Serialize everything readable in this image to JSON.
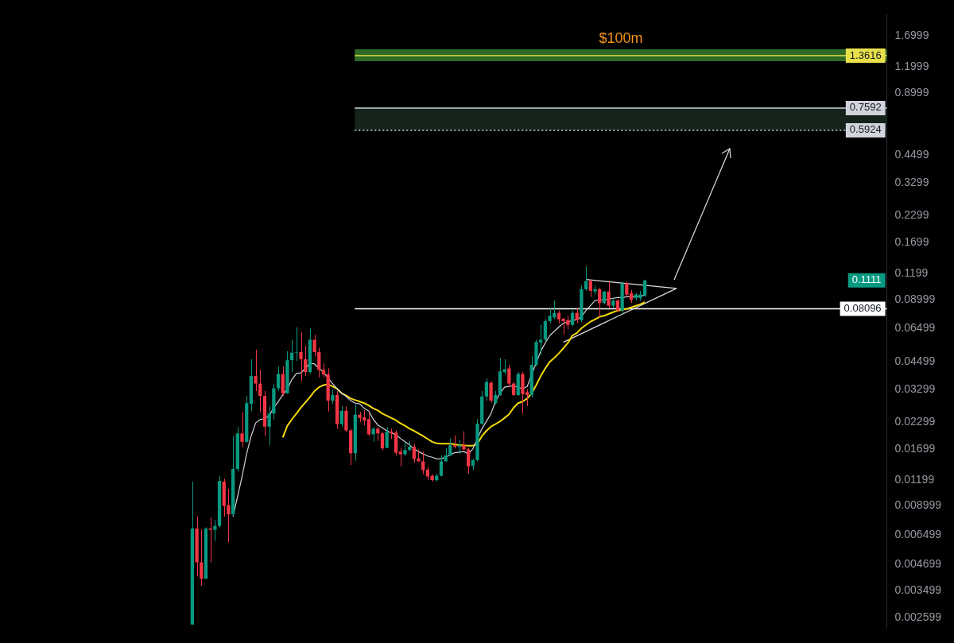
{
  "chart_data": {
    "type": "candlestick",
    "log": true,
    "grid": false,
    "legend": false,
    "tick_labels": "y",
    "colors": [
      null,
      null,
      null,
      null,
      null,
      null,
      null,
      null,
      null,
      null,
      null,
      null,
      null,
      null,
      null,
      null,
      null,
      null,
      null,
      null,
      null,
      null,
      null,
      null,
      null,
      null,
      null,
      null,
      null,
      null,
      null,
      null,
      null,
      null,
      null,
      null,
      null,
      null,
      null,
      null,
      null,
      null,
      "#089981",
      "#f23645",
      "#f23645",
      "#089981",
      "#f23645",
      "#089981",
      "#089981",
      "#f23645",
      "#f23645",
      "#089981",
      "#089981",
      "#f23645",
      "#089981",
      "#089981",
      "#f23645",
      "#f23645",
      "#f23645",
      "#089981",
      "#089981",
      "#089981",
      "#f23645",
      "#089981",
      "#089981",
      "#089981",
      "#f23645",
      "#f23645",
      "#089981",
      "#f23645",
      "#f23645",
      "#f23645",
      "#f23645",
      "#089981",
      "#f23645",
      "#089981",
      "#f23645",
      "#f23645",
      "#089981",
      "#f23645",
      "#f23645",
      "#f23645",
      "#089981",
      "#f23645",
      "#f23645",
      "#089981",
      "#f23645",
      "#f23645",
      "#f23645",
      "#089981",
      "#089981",
      "#f23645",
      "#f23645",
      "#f23645",
      "#f23645",
      "#f23645",
      "#089981",
      "#089981",
      "#089981",
      "#089981",
      "#f23645",
      "#089981",
      "#f23645",
      "#f23645",
      "#089981",
      "#089981",
      "#089981",
      "#089981",
      "#f23645",
      "#089981",
      "#089981",
      "#089981",
      "#f23645",
      "#f23645",
      "#089981",
      "#f23645",
      "#f23645",
      "#089981",
      "#089981",
      "#089981",
      "#089981",
      "#089981",
      "#089981",
      "#f23645",
      "#f23645",
      "#f23645",
      "#089981",
      "#f23645",
      "#089981",
      "#089981",
      "#f23645",
      "#089981",
      "#f23645",
      "#089981",
      "#f23645",
      "#089981",
      "#f23645",
      "#089981",
      "#f23645",
      "#f23645",
      "#089981",
      "#089981",
      "#089981",
      null,
      null,
      null,
      null,
      null,
      null,
      null,
      null,
      null,
      null,
      null,
      null,
      null,
      null,
      null,
      null,
      null,
      null,
      null,
      null,
      null,
      null,
      null,
      null,
      null,
      null,
      null,
      null,
      null,
      null,
      null,
      null,
      null,
      null,
      null,
      null,
      null,
      null,
      null,
      null,
      null,
      null,
      null,
      null,
      null,
      null,
      null,
      null,
      null,
      null,
      null,
      null,
      null
    ],
    "ylim": [
      0.0023,
      2.15
    ],
    "yticks": [
      0.002599,
      0.003499,
      0.004699,
      0.006499,
      0.008999,
      0.01199,
      0.01699,
      0.02299,
      0.03299,
      0.04499,
      0.06499,
      0.08999,
      0.1199,
      0.1699,
      0.2299,
      0.3299,
      0.4499,
      0.8999,
      1.1999,
      1.6999
    ],
    "categories": [
      null,
      null,
      null,
      null,
      null,
      null,
      null,
      null,
      null,
      null,
      null,
      null,
      null,
      null,
      null,
      null,
      null,
      null,
      null,
      null,
      null,
      null,
      null,
      null,
      null,
      null,
      null,
      null,
      null,
      null,
      null,
      null,
      null,
      null,
      null,
      null,
      null,
      null,
      null,
      null,
      null,
      null,
      null,
      null,
      null,
      null,
      null,
      null,
      null,
      null,
      null,
      null,
      null,
      null,
      null,
      null,
      null,
      null,
      null,
      null,
      null,
      null,
      null,
      null,
      null,
      null,
      null,
      null,
      null,
      null,
      null,
      null,
      null,
      null,
      null,
      null,
      null,
      null,
      null,
      null,
      null,
      null,
      null,
      null,
      null,
      null,
      null,
      null,
      null,
      null,
      null,
      null,
      null,
      null,
      null,
      null,
      null,
      null,
      null,
      null,
      null,
      null,
      null,
      null,
      null,
      null,
      null,
      null,
      null,
      null,
      null,
      null,
      null,
      null,
      null,
      null,
      null,
      null,
      null,
      null,
      null,
      null,
      null,
      null,
      null,
      null,
      null,
      null,
      null,
      null,
      null,
      null,
      null,
      null,
      null,
      null,
      null,
      null,
      null,
      null,
      null,
      null,
      null,
      null,
      null,
      null,
      null,
      null,
      null,
      null,
      null,
      null,
      null,
      null,
      null,
      null,
      null,
      null,
      null,
      null,
      null,
      null,
      null,
      null,
      null,
      null,
      null,
      null,
      null,
      null,
      null,
      null,
      null,
      null,
      null,
      null,
      null,
      null,
      null,
      null,
      null,
      null,
      null,
      null,
      null,
      null,
      null,
      null,
      null,
      null,
      null,
      null,
      null,
      null,
      null,
      null
    ],
    "ohlc": [
      null,
      null,
      null,
      null,
      null,
      null,
      null,
      null,
      null,
      null,
      null,
      null,
      null,
      null,
      null,
      null,
      null,
      null,
      null,
      null,
      null,
      null,
      null,
      null,
      null,
      null,
      null,
      null,
      null,
      null,
      null,
      null,
      null,
      null,
      null,
      null,
      null,
      null,
      null,
      null,
      null,
      null,
      [
        0.0024,
        0.0118,
        0.0024,
        0.007
      ],
      [
        0.007,
        0.008,
        0.0041,
        0.0048
      ],
      [
        0.0048,
        0.0069,
        0.0037,
        0.004
      ],
      [
        0.004,
        0.0071,
        0.004,
        0.007
      ],
      [
        0.007,
        0.0079,
        0.0048,
        0.0069
      ],
      [
        0.0069,
        0.0077,
        0.0061,
        0.0072
      ],
      [
        0.0072,
        0.0126,
        0.0071,
        0.0119
      ],
      [
        0.0118,
        0.0122,
        0.008,
        0.009
      ],
      [
        0.0091,
        0.0109,
        0.006,
        0.0082
      ],
      [
        0.0082,
        0.0196,
        0.0081,
        0.0136
      ],
      [
        0.0136,
        0.0218,
        0.0132,
        0.0202
      ],
      [
        0.0202,
        0.0257,
        0.0173,
        0.0184
      ],
      [
        0.0184,
        0.0307,
        0.0182,
        0.0283
      ],
      [
        0.0281,
        0.0462,
        0.026,
        0.0383
      ],
      [
        0.0383,
        0.0514,
        0.0324,
        0.0352
      ],
      [
        0.0352,
        0.041,
        0.0256,
        0.0307
      ],
      [
        0.0307,
        0.0324,
        0.0196,
        0.0218
      ],
      [
        0.0218,
        0.0274,
        0.0177,
        0.0252
      ],
      [
        0.0252,
        0.0352,
        0.0236,
        0.0334
      ],
      [
        0.0334,
        0.0426,
        0.0324,
        0.0392
      ],
      [
        0.0392,
        0.0426,
        0.0307,
        0.0316
      ],
      [
        0.0316,
        0.0505,
        0.0314,
        0.0457
      ],
      [
        0.0457,
        0.0574,
        0.04,
        0.0497
      ],
      [
        0.0497,
        0.066,
        0.0453,
        0.05
      ],
      [
        0.05,
        0.0624,
        0.0362,
        0.0462
      ],
      [
        0.0462,
        0.0536,
        0.0383,
        0.04
      ],
      [
        0.04,
        0.065,
        0.0394,
        0.0574
      ],
      [
        0.0574,
        0.0606,
        0.0476,
        0.05
      ],
      [
        0.05,
        0.0526,
        0.0377,
        0.041
      ],
      [
        0.041,
        0.0441,
        0.0377,
        0.039
      ],
      [
        0.039,
        0.0417,
        0.0258,
        0.0291
      ],
      [
        0.0291,
        0.033,
        0.0281,
        0.031
      ],
      [
        0.031,
        0.0324,
        0.0213,
        0.0224
      ],
      [
        0.0224,
        0.0274,
        0.0218,
        0.026
      ],
      [
        0.026,
        0.0274,
        0.0205,
        0.0209
      ],
      [
        0.0209,
        0.0213,
        0.0142,
        0.0162
      ],
      [
        0.0162,
        0.0279,
        0.0149,
        0.0249
      ],
      [
        0.0249,
        0.0257,
        0.0229,
        0.024
      ],
      [
        0.0242,
        0.0262,
        0.0221,
        0.0233
      ],
      [
        0.0237,
        0.0256,
        0.0196,
        0.02
      ],
      [
        0.02,
        0.0217,
        0.0184,
        0.0213
      ],
      [
        0.0213,
        0.0217,
        0.0186,
        0.0202
      ],
      [
        0.0202,
        0.0205,
        0.0168,
        0.0171
      ],
      [
        0.0172,
        0.0217,
        0.0171,
        0.0206
      ],
      [
        0.0206,
        0.0213,
        0.019,
        0.0202
      ],
      [
        0.0204,
        0.0209,
        0.0158,
        0.0163
      ],
      [
        0.0165,
        0.0172,
        0.014,
        0.016
      ],
      [
        0.016,
        0.0184,
        0.0158,
        0.0168
      ],
      [
        0.0168,
        0.0186,
        0.0165,
        0.0174
      ],
      [
        0.0174,
        0.018,
        0.0146,
        0.0152
      ],
      [
        0.0153,
        0.0169,
        0.0147,
        0.0148
      ],
      [
        0.0148,
        0.0165,
        0.0128,
        0.0134
      ],
      [
        0.0135,
        0.0139,
        0.012,
        0.0125
      ],
      [
        0.0126,
        0.0128,
        0.0118,
        0.012
      ],
      [
        0.012,
        0.0129,
        0.0118,
        0.0126
      ],
      [
        0.0126,
        0.0158,
        0.0125,
        0.0148
      ],
      [
        0.0148,
        0.0171,
        0.0147,
        0.0158
      ],
      [
        0.0158,
        0.0191,
        0.0157,
        0.0177
      ],
      [
        0.0177,
        0.0198,
        0.0171,
        0.0174
      ],
      [
        0.0174,
        0.0187,
        0.0161,
        0.0177
      ],
      [
        0.0177,
        0.0207,
        0.0168,
        0.0169
      ],
      [
        0.0169,
        0.0172,
        0.0129,
        0.014
      ],
      [
        0.0141,
        0.0152,
        0.0134,
        0.015
      ],
      [
        0.015,
        0.0237,
        0.0148,
        0.0225
      ],
      [
        0.0225,
        0.0324,
        0.0221,
        0.0305
      ],
      [
        0.0305,
        0.0373,
        0.0291,
        0.0358
      ],
      [
        0.0355,
        0.0362,
        0.0285,
        0.0291
      ],
      [
        0.0283,
        0.0324,
        0.028,
        0.031
      ],
      [
        0.031,
        0.0468,
        0.0307,
        0.0403
      ],
      [
        0.04,
        0.0462,
        0.039,
        0.0413
      ],
      [
        0.0417,
        0.0433,
        0.0338,
        0.0352
      ],
      [
        0.0352,
        0.0358,
        0.0307,
        0.031
      ],
      [
        0.031,
        0.04,
        0.0307,
        0.0392
      ],
      [
        0.0392,
        0.04,
        0.0252,
        0.0313
      ],
      [
        0.032,
        0.033,
        0.0274,
        0.031
      ],
      [
        0.031,
        0.048,
        0.0302,
        0.0434
      ],
      [
        0.0434,
        0.0574,
        0.0426,
        0.056
      ],
      [
        0.0556,
        0.068,
        0.0485,
        0.0574
      ],
      [
        0.0574,
        0.072,
        0.056,
        0.0706
      ],
      [
        0.0706,
        0.0816,
        0.069,
        0.075
      ],
      [
        0.0736,
        0.0888,
        0.072,
        0.0774
      ],
      [
        0.0774,
        0.0796,
        0.069,
        0.072
      ],
      [
        0.0726,
        0.073,
        0.0608,
        0.0706
      ],
      [
        0.0713,
        0.075,
        0.0645,
        0.0677
      ],
      [
        0.0677,
        0.0796,
        0.067,
        0.0774
      ],
      [
        0.0774,
        0.0816,
        0.069,
        0.0713
      ],
      [
        0.0713,
        0.105,
        0.07,
        0.1008
      ],
      [
        0.1008,
        0.13,
        0.099,
        0.1104
      ],
      [
        0.1104,
        0.1123,
        0.0926,
        0.099
      ],
      [
        0.0982,
        0.105,
        0.095,
        0.1008
      ],
      [
        0.1008,
        0.1025,
        0.0736,
        0.0866
      ],
      [
        0.0866,
        0.099,
        0.0852,
        0.0982
      ],
      [
        0.0982,
        0.1096,
        0.0816,
        0.0838
      ],
      [
        0.0838,
        0.0903,
        0.0816,
        0.0888
      ],
      [
        0.0888,
        0.0903,
        0.0782,
        0.0796
      ],
      [
        0.0796,
        0.1096,
        0.0766,
        0.1076
      ],
      [
        0.1076,
        0.1096,
        0.0926,
        0.095
      ],
      [
        0.0966,
        0.1,
        0.0866,
        0.0896
      ],
      [
        0.0912,
        0.0966,
        0.0888,
        0.095
      ],
      [
        0.0912,
        0.099,
        0.0888,
        0.095
      ],
      [
        0.094,
        0.1123,
        0.0926,
        0.1111
      ],
      null,
      null,
      null,
      null,
      null,
      null,
      null,
      null,
      null,
      null,
      null,
      null,
      null,
      null,
      null,
      null,
      null,
      null,
      null,
      null,
      null,
      null,
      null,
      null,
      null,
      null,
      null,
      null,
      null,
      null,
      null,
      null,
      null,
      null,
      null,
      null,
      null,
      null,
      null,
      null,
      null,
      null,
      null,
      null,
      null,
      null,
      null,
      null,
      null,
      null,
      null,
      null,
      null
    ],
    "series": [
      {
        "type": "line",
        "color": "#d1d4dc",
        "values": [
          null,
          null,
          null,
          null,
          null,
          null,
          null,
          null,
          null,
          null,
          null,
          null,
          null,
          null,
          null,
          null,
          null,
          null,
          null,
          null,
          null,
          null,
          null,
          null,
          null,
          null,
          null,
          null,
          null,
          null,
          null,
          null,
          null,
          null,
          null,
          null,
          null,
          null,
          null,
          null,
          null,
          null,
          null,
          null,
          null,
          null,
          null,
          null,
          null,
          null,
          null,
          0.008,
          0.01,
          0.0125,
          0.0161,
          0.0196,
          0.0227,
          0.0236,
          0.0238,
          0.0246,
          0.0269,
          0.0288,
          0.0311,
          0.0332,
          0.0368,
          0.0394,
          0.0397,
          0.0417,
          0.0442,
          0.0438,
          0.0417,
          0.04,
          0.0374,
          0.0352,
          0.0332,
          0.0316,
          0.0305,
          0.0291,
          0.0283,
          0.0281,
          0.0267,
          0.0259,
          0.0236,
          0.0222,
          0.0215,
          0.0208,
          0.0203,
          0.0199,
          0.0191,
          0.0184,
          0.0178,
          0.017,
          0.0165,
          0.0161,
          0.0157,
          0.0155,
          0.0152,
          0.0152,
          0.0155,
          0.0159,
          0.0163,
          0.0164,
          0.0165,
          0.0161,
          0.017,
          null,
          0.0213,
          0.0231,
          0.0252,
          0.0288,
          0.0316,
          0.0338,
          0.0341,
          0.0344,
          0.0338,
          0.0332,
          0.0341,
          null,
          null,
          0.0505,
          0.0554,
          0.0601,
          0.0631,
          0.0661,
          0.069,
          0.0702,
          0.0708,
          0.072,
          0.0741,
          0.0796,
          0.084,
          0.0888,
          0.0895,
          0.0895,
          0.0903,
          0.0911,
          0.0919,
          0.0919,
          0.0927,
          0.0927,
          0.0927,
          0.0935,
          0.0943,
          null,
          null,
          null,
          null,
          null,
          null,
          null,
          null,
          null,
          null,
          null,
          null,
          null,
          null,
          null,
          null,
          null,
          null,
          null,
          null,
          null,
          null,
          null,
          null,
          null,
          null,
          null,
          null,
          null,
          null,
          null,
          null,
          null,
          null,
          null,
          null,
          null,
          null,
          null,
          null,
          null,
          null,
          null,
          null,
          null,
          null,
          null,
          null,
          null,
          null,
          null,
          null,
          null
        ]
      },
      {
        "type": "line",
        "color": "#f5d90a",
        "values": [
          null,
          null,
          null,
          null,
          null,
          null,
          null,
          null,
          null,
          null,
          null,
          null,
          null,
          null,
          null,
          null,
          null,
          null,
          null,
          null,
          null,
          null,
          null,
          null,
          null,
          null,
          null,
          null,
          null,
          null,
          null,
          null,
          null,
          null,
          null,
          null,
          null,
          null,
          null,
          null,
          null,
          null,
          null,
          null,
          null,
          null,
          null,
          null,
          null,
          null,
          null,
          null,
          null,
          null,
          null,
          null,
          null,
          null,
          null,
          null,
          null,
          null,
          0.0193,
          0.022,
          0.0236,
          0.0252,
          0.0269,
          0.0286,
          0.0303,
          0.0324,
          0.0338,
          0.0346,
          0.0349,
          0.0341,
          0.0332,
          0.0316,
          0.0308,
          0.0298,
          0.0293,
          0.0288,
          0.0283,
          0.0276,
          0.0267,
          0.0261,
          0.0252,
          0.0246,
          0.024,
          0.0234,
          0.0226,
          0.022,
          0.0213,
          0.0208,
          0.0202,
          0.0196,
          0.019,
          0.0184,
          0.0181,
          0.018,
          0.018,
          0.018,
          0.0179,
          0.0177,
          0.0177,
          0.0176,
          0.0176,
          0.018,
          0.0196,
          0.0208,
          0.0218,
          0.0224,
          0.0231,
          0.024,
          0.025,
          0.0269,
          0.0283,
          0.0288,
          0.0298,
          0.0316,
          0.0346,
          0.0383,
          0.0417,
          0.0449,
          0.0469,
          0.0493,
          0.0522,
          0.0554,
          0.0601,
          0.0619,
          0.0652,
          0.0677,
          0.0702,
          0.072,
          0.0741,
          0.075,
          0.0765,
          0.078,
          0.0795,
          0.0802,
          0.0809,
          0.0823,
          0.0838,
          0.0852,
          0.0873,
          null,
          null,
          null,
          null,
          null,
          null,
          null,
          null,
          null,
          null,
          null,
          null,
          null,
          null,
          null,
          null,
          null,
          null,
          null,
          null,
          null,
          null,
          null,
          null,
          null,
          null,
          null,
          null,
          null,
          null,
          null,
          null,
          null,
          null,
          null,
          null,
          null,
          null,
          null,
          null,
          null,
          null,
          null,
          null,
          null,
          null,
          null,
          null,
          null,
          null,
          null,
          null,
          null
        ]
      },
      {
        "type": "line",
        "color": "#e0e0e0",
        "values": [
          null,
          null,
          null,
          null,
          null,
          null,
          null,
          null,
          null,
          null,
          null,
          null,
          null,
          null,
          null,
          null,
          null,
          null,
          null,
          null,
          null,
          null,
          null,
          null,
          null,
          null,
          null,
          null,
          null,
          null,
          null,
          null,
          null,
          null,
          null,
          null,
          null,
          null,
          null,
          null,
          null,
          null,
          null,
          null,
          null,
          null,
          null,
          null,
          null,
          null,
          null,
          null,
          null,
          null,
          null,
          null,
          null,
          null,
          null,
          null,
          null,
          null,
          null,
          null,
          null,
          null,
          null,
          null,
          null,
          null,
          null,
          null,
          null,
          null,
          null,
          null,
          null,
          null,
          null,
          null,
          null,
          null,
          null,
          null,
          null,
          null,
          null,
          null,
          null,
          null,
          null,
          null,
          null,
          null,
          null,
          null,
          null,
          null,
          null,
          null,
          null,
          null,
          null,
          null,
          null,
          null,
          null,
          null,
          null,
          null,
          null,
          null,
          null,
          null,
          null,
          null,
          null,
          null,
          null,
          null,
          null,
          null,
          null,
          null,
          null,
          null,
          null,
          null,
          null,
          0.1123,
          null,
          null,
          null,
          null,
          null,
          null,
          null,
          null,
          null,
          null,
          null,
          null,
          null,
          null,
          null,
          null,
          null,
          null,
          null,
          0.1017,
          null,
          null,
          null,
          null,
          null,
          null,
          null,
          null,
          null,
          null,
          null,
          null,
          null,
          null,
          null,
          null,
          null,
          null,
          null,
          null,
          null,
          null,
          null,
          null,
          null,
          null,
          null,
          null,
          null,
          null,
          null,
          null,
          null,
          null,
          null,
          null,
          null,
          null,
          null,
          null,
          null,
          null,
          null,
          null,
          null,
          null
        ]
      },
      {
        "type": "line",
        "color": "#e0e0e0",
        "values": [
          null,
          null,
          null,
          null,
          null,
          null,
          null,
          null,
          null,
          null,
          null,
          null,
          null,
          null,
          null,
          null,
          null,
          null,
          null,
          null,
          null,
          null,
          null,
          null,
          null,
          null,
          null,
          null,
          null,
          null,
          null,
          null,
          null,
          null,
          null,
          null,
          null,
          null,
          null,
          null,
          null,
          null,
          null,
          null,
          null,
          null,
          null,
          null,
          null,
          null,
          null,
          null,
          null,
          null,
          null,
          null,
          null,
          null,
          null,
          null,
          null,
          null,
          null,
          null,
          null,
          null,
          null,
          null,
          null,
          null,
          null,
          null,
          null,
          null,
          null,
          null,
          null,
          null,
          null,
          null,
          null,
          null,
          null,
          null,
          null,
          null,
          null,
          null,
          null,
          null,
          null,
          null,
          null,
          null,
          null,
          null,
          null,
          null,
          null,
          null,
          null,
          null,
          null,
          null,
          null,
          null,
          null,
          null,
          null,
          null,
          null,
          null,
          null,
          null,
          null,
          null,
          null,
          null,
          null,
          null,
          null,
          null,
          null,
          null,
          0.0558,
          null,
          null,
          null,
          null,
          null,
          null,
          null,
          null,
          null,
          null,
          null,
          null,
          null,
          null,
          null,
          null,
          null,
          null,
          null,
          null,
          null,
          null,
          null,
          null,
          0.1017,
          null,
          null,
          null,
          null,
          null,
          null,
          null,
          null,
          null,
          null,
          null,
          null,
          null,
          null,
          null,
          null,
          null,
          null,
          null,
          null,
          null,
          null,
          null,
          null,
          null,
          null,
          null,
          null,
          null,
          null,
          null,
          null,
          null,
          null,
          null,
          null,
          null,
          null,
          null,
          null,
          null,
          null,
          null,
          null,
          null,
          null
        ]
      }
    ],
    "bands": [
      {
        "axis": "y",
        "from": 1.28,
        "to": 1.46,
        "label": "$100m",
        "color": "#2e6b26"
      },
      {
        "axis": "y",
        "from": 0.5924,
        "to": 0.7592,
        "color": "#15241a"
      }
    ],
    "ref_lines": [
      {
        "axis": "y",
        "value": 1.3616,
        "label": "1.3616",
        "color": "#e8e04a"
      },
      {
        "axis": "y",
        "value": 0.7592,
        "label": "0.7592",
        "color": "#d1d4dc"
      },
      {
        "axis": "y",
        "value": 0.5924,
        "label": "0.5924",
        "color": "#d1d4dc",
        "line_style": "dotted"
      },
      {
        "axis": "y",
        "value": 0.08096,
        "label": "0.08096",
        "color": "#ffffff"
      }
    ],
    "annotations": [
      "0.1111"
    ]
  }
}
